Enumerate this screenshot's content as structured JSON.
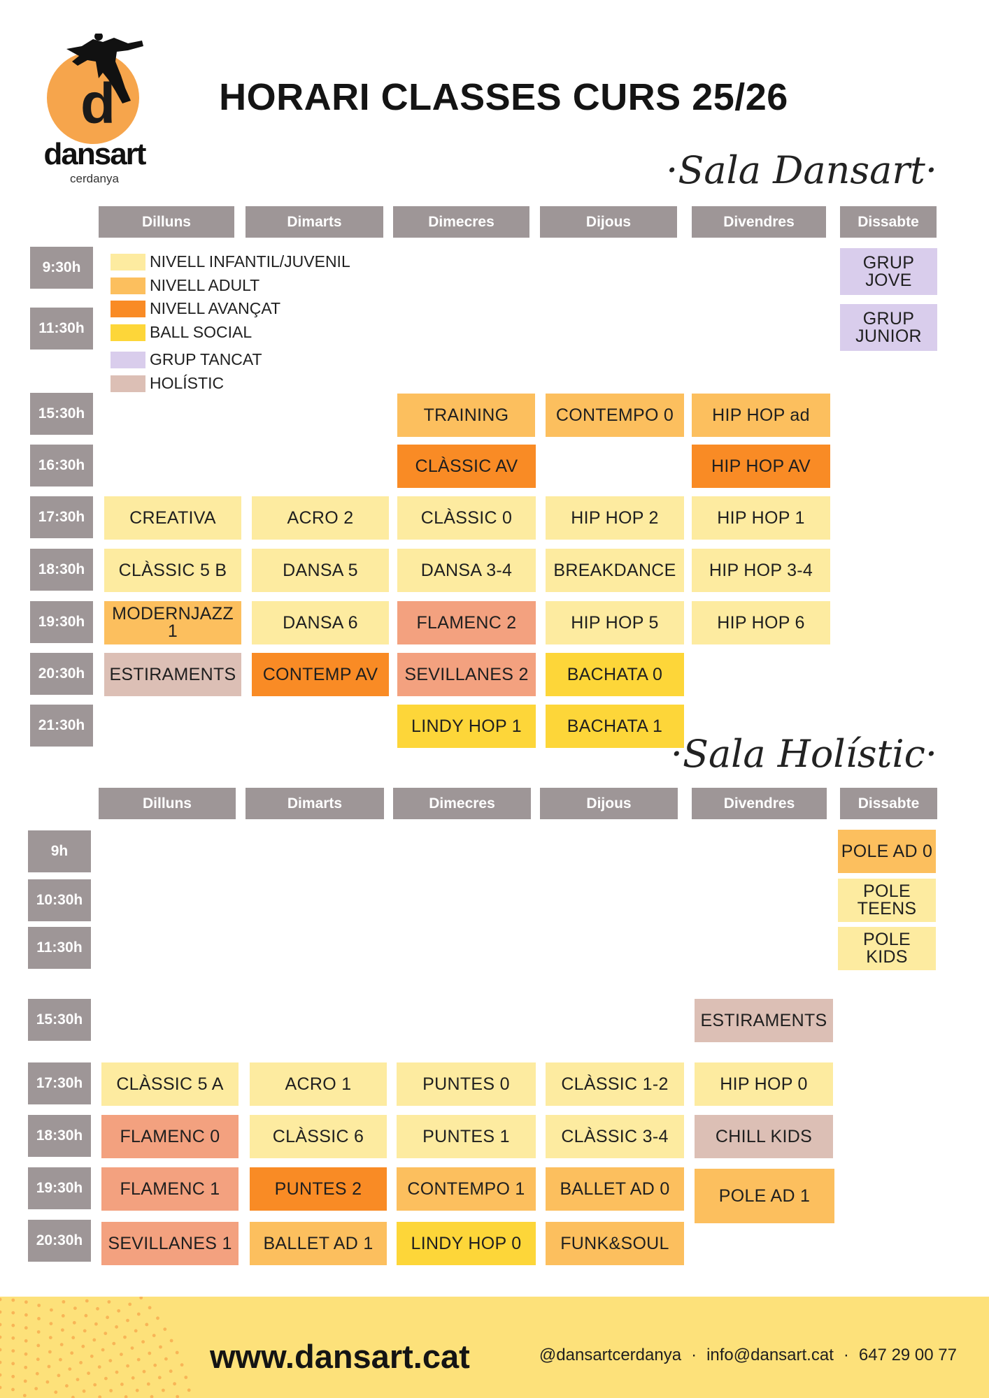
{
  "title": "HORARI CLASSES CURS 25/26",
  "logo": {
    "brand": "dansart",
    "sub": "cerdanya"
  },
  "colors": {
    "infantil": "#fdeba0",
    "adult": "#fcbf5e",
    "avancat": "#f98b25",
    "social": "#fdd639",
    "tancat": "#d9cdec",
    "holistic": "#dcbfb5",
    "flamenc": "#f3a17f",
    "header": "#9e9697",
    "footer": "#fde17a"
  },
  "legend": [
    {
      "label": "NIVELL INFANTIL/JUVENIL",
      "key": "infantil"
    },
    {
      "label": "NIVELL ADULT",
      "key": "adult"
    },
    {
      "label": "NIVELL AVANÇAT",
      "key": "avancat"
    },
    {
      "label": "BALL SOCIAL",
      "key": "social"
    },
    {
      "label": "GRUP TANCAT",
      "key": "tancat"
    },
    {
      "label": "HOLÍSTIC",
      "key": "holistic"
    }
  ],
  "sala1": {
    "name": "·Sala Dansart·",
    "days": [
      "Dilluns",
      "Dimarts",
      "Dimecres",
      "Dijous",
      "Divendres",
      "Dissabte"
    ],
    "times": [
      "9:30h",
      "11:30h",
      "15:30h",
      "16:30h",
      "17:30h",
      "18:30h",
      "19:30h",
      "20:30h",
      "21:30h"
    ],
    "classes": [
      {
        "label": "GRUP JOVE",
        "key": "tancat"
      },
      {
        "label": "GRUP JUNIOR",
        "key": "tancat"
      },
      {
        "label": "TRAINING",
        "key": "adult"
      },
      {
        "label": "CONTEMPO 0",
        "key": "adult"
      },
      {
        "label": "HIP HOP ad",
        "key": "adult"
      },
      {
        "label": "CLÀSSIC AV",
        "key": "avancat"
      },
      {
        "label": "HIP HOP AV",
        "key": "avancat"
      },
      {
        "label": "CREATIVA",
        "key": "infantil"
      },
      {
        "label": "ACRO 2",
        "key": "infantil"
      },
      {
        "label": "CLÀSSIC 0",
        "key": "infantil"
      },
      {
        "label": "HIP HOP 2",
        "key": "infantil"
      },
      {
        "label": "HIP HOP 1",
        "key": "infantil"
      },
      {
        "label": "CLÀSSIC 5 B",
        "key": "infantil"
      },
      {
        "label": "DANSA 5",
        "key": "infantil"
      },
      {
        "label": "DANSA 3-4",
        "key": "infantil"
      },
      {
        "label": "BREAKDANCE",
        "key": "infantil"
      },
      {
        "label": "HIP HOP 3-4",
        "key": "infantil"
      },
      {
        "label": "MODERNJAZZ 1",
        "key": "adult"
      },
      {
        "label": "DANSA 6",
        "key": "infantil"
      },
      {
        "label": "FLAMENC 2",
        "key": "flamenc"
      },
      {
        "label": "HIP HOP 5",
        "key": "infantil"
      },
      {
        "label": "HIP HOP 6",
        "key": "infantil"
      },
      {
        "label": "ESTIRAMENTS",
        "key": "holistic"
      },
      {
        "label": "CONTEMP AV",
        "key": "avancat"
      },
      {
        "label": "SEVILLANES 2",
        "key": "flamenc"
      },
      {
        "label": "BACHATA 0",
        "key": "social"
      },
      {
        "label": "LINDY HOP 1",
        "key": "social"
      },
      {
        "label": "BACHATA 1",
        "key": "social"
      }
    ]
  },
  "sala2": {
    "name": "·Sala Holístic·",
    "days": [
      "Dilluns",
      "Dimarts",
      "Dimecres",
      "Dijous",
      "Divendres",
      "Dissabte"
    ],
    "times": [
      "9h",
      "10:30h",
      "11:30h",
      "15:30h",
      "17:30h",
      "18:30h",
      "19:30h",
      "20:30h"
    ],
    "classes": [
      {
        "label": "POLE AD 0",
        "key": "adult"
      },
      {
        "label": "POLE TEENS",
        "key": "infantil"
      },
      {
        "label": "POLE KIDS",
        "key": "infantil"
      },
      {
        "label": "ESTIRAMENTS",
        "key": "holistic"
      },
      {
        "label": "CLÀSSIC 5 A",
        "key": "infantil"
      },
      {
        "label": "ACRO 1",
        "key": "infantil"
      },
      {
        "label": "PUNTES 0",
        "key": "infantil"
      },
      {
        "label": "CLÀSSIC 1-2",
        "key": "infantil"
      },
      {
        "label": "HIP HOP 0",
        "key": "infantil"
      },
      {
        "label": "FLAMENC 0",
        "key": "flamenc"
      },
      {
        "label": "CLÀSSIC 6",
        "key": "infantil"
      },
      {
        "label": "PUNTES 1",
        "key": "infantil"
      },
      {
        "label": "CLÀSSIC 3-4",
        "key": "infantil"
      },
      {
        "label": "CHILL KIDS",
        "key": "holistic"
      },
      {
        "label": "FLAMENC 1",
        "key": "flamenc"
      },
      {
        "label": "PUNTES 2",
        "key": "avancat"
      },
      {
        "label": "CONTEMPO 1",
        "key": "adult"
      },
      {
        "label": "BALLET AD 0",
        "key": "adult"
      },
      {
        "label": "POLE AD 1",
        "key": "adult"
      },
      {
        "label": "SEVILLANES 1",
        "key": "flamenc"
      },
      {
        "label": "BALLET AD 1",
        "key": "adult"
      },
      {
        "label": "LINDY HOP 0",
        "key": "social"
      },
      {
        "label": "FUNK&SOUL",
        "key": "adult"
      }
    ]
  },
  "footer": {
    "website": "www.dansart.cat",
    "instagram": "@dansartcerdanya",
    "email": "info@dansart.cat",
    "phone": "647 29 00 77",
    "separator": "·"
  }
}
